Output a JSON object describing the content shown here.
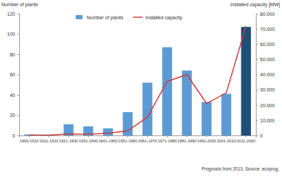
{
  "chart_data": {
    "type": "bar",
    "y_label": "Number of plants",
    "y2_label": "Installed capacity [MW]",
    "annotations": [
      "Prognosis from 2013, Source: ecoprog."
    ],
    "categories": [
      "1900-1910",
      "1911-1920",
      "1921-1930",
      "1931-1940",
      "1941-1950",
      "1951-1960",
      "1961-1970",
      "1971-1980",
      "1981-1990",
      "1991-2000",
      "2001-2010",
      "2011-2020"
    ],
    "series": [
      {
        "name": "Number of plants",
        "type": "bar",
        "color": "#5b9bd5",
        "colors": [
          "#5b9bd5",
          "#5b9bd5",
          "#5b9bd5",
          "#5b9bd5",
          "#5b9bd5",
          "#5b9bd5",
          "#5b9bd5",
          "#5b9bd5",
          "#5b9bd5",
          "#5b9bd5",
          "#5b9bd5",
          "#1f4e79"
        ],
        "values": [
          1,
          0,
          11,
          9,
          7,
          23,
          52,
          87,
          64,
          33,
          41,
          107
        ]
      },
      {
        "name": "Installed capacity",
        "type": "line",
        "axis": "y2",
        "color": "#d0393b",
        "line_style": "solid",
        "values": [
          200,
          200,
          1000,
          800,
          1500,
          3000,
          12000,
          35500,
          40000,
          21000,
          28000,
          72000
        ]
      }
    ],
    "ylim": [
      0,
      120
    ],
    "yticks": [
      0,
      20,
      40,
      60,
      80,
      100,
      120
    ],
    "y2lim": [
      0,
      80000
    ],
    "y2ticks": [
      0,
      {
        "value": 10000,
        "label": "10.000"
      },
      {
        "value": 20000,
        "label": "20.000"
      },
      {
        "value": 30000,
        "label": "30.000"
      },
      {
        "value": 40000,
        "label": "40.000"
      },
      {
        "value": 50000,
        "label": "50.000"
      },
      {
        "value": 60000,
        "label": "60.000"
      },
      {
        "value": 70000,
        "label": "70.000"
      },
      {
        "value": 80000,
        "label": "80.000"
      }
    ],
    "grid": false,
    "legend": "top"
  }
}
